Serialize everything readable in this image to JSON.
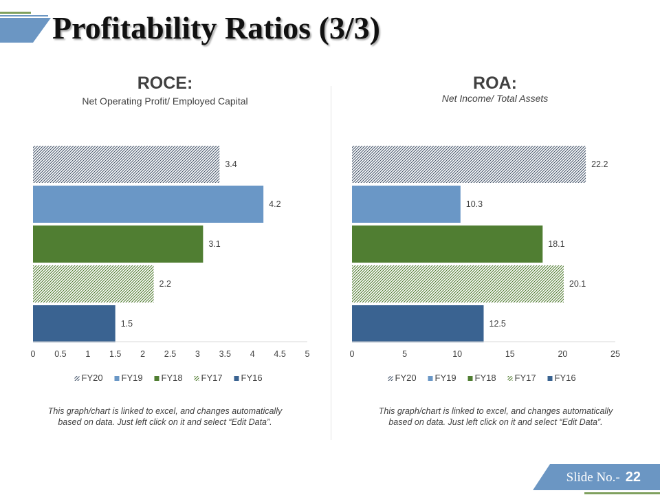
{
  "slide": {
    "title": "Profitability Ratios (3/3)",
    "slide_label": "Slide No.-",
    "slide_number": "22"
  },
  "colors": {
    "fy16": "#3a6391",
    "fy17_hatch": "#4f7a2e",
    "fy18": "#507e32",
    "fy19": "#6a97c6",
    "fy20_hatch": "#44546a",
    "accent_blue": "#6b96c3",
    "accent_green": "#7fa05e"
  },
  "roce": {
    "title": "ROCE:",
    "subtitle": "Net Operating Profit/ Employed Capital",
    "note": "This graph/chart is linked to excel, and changes automatically based on data. Just left click on it and select “Edit Data”."
  },
  "roa": {
    "title": "ROA:",
    "subtitle": "Net Income/ Total Assets",
    "note": "This graph/chart is linked to excel, and changes automatically based on data. Just left click on it and select “Edit Data”."
  },
  "chart_data": [
    {
      "type": "bar",
      "orientation": "horizontal",
      "title": "ROCE:",
      "subtitle": "Net Operating Profit/ Employed Capital",
      "categories": [
        "FY20",
        "FY19",
        "FY18",
        "FY17",
        "FY16"
      ],
      "values": [
        3.4,
        4.2,
        3.1,
        2.2,
        1.5
      ],
      "xlim": [
        0,
        5
      ],
      "ticks": [
        "0",
        "0.5",
        "1",
        "1.5",
        "2",
        "2.5",
        "3",
        "3.5",
        "4",
        "4.5",
        "5"
      ],
      "tick_values": [
        0,
        0.5,
        1,
        1.5,
        2,
        2.5,
        3,
        3.5,
        4,
        4.5,
        5
      ],
      "legend": [
        "FY20",
        "FY19",
        "FY18",
        "FY17",
        "FY16"
      ],
      "legend_position": "bottom",
      "grid": false
    },
    {
      "type": "bar",
      "orientation": "horizontal",
      "title": "ROA:",
      "subtitle": "Net Income/ Total Assets",
      "categories": [
        "FY20",
        "FY19",
        "FY18",
        "FY17",
        "FY16"
      ],
      "values": [
        22.2,
        10.3,
        18.1,
        20.1,
        12.5
      ],
      "xlim": [
        0,
        25
      ],
      "ticks": [
        "0",
        "5",
        "10",
        "15",
        "20",
        "25"
      ],
      "tick_values": [
        0,
        5,
        10,
        15,
        20,
        25
      ],
      "legend": [
        "FY20",
        "FY19",
        "FY18",
        "FY17",
        "FY16"
      ],
      "legend_position": "bottom",
      "grid": false
    }
  ]
}
